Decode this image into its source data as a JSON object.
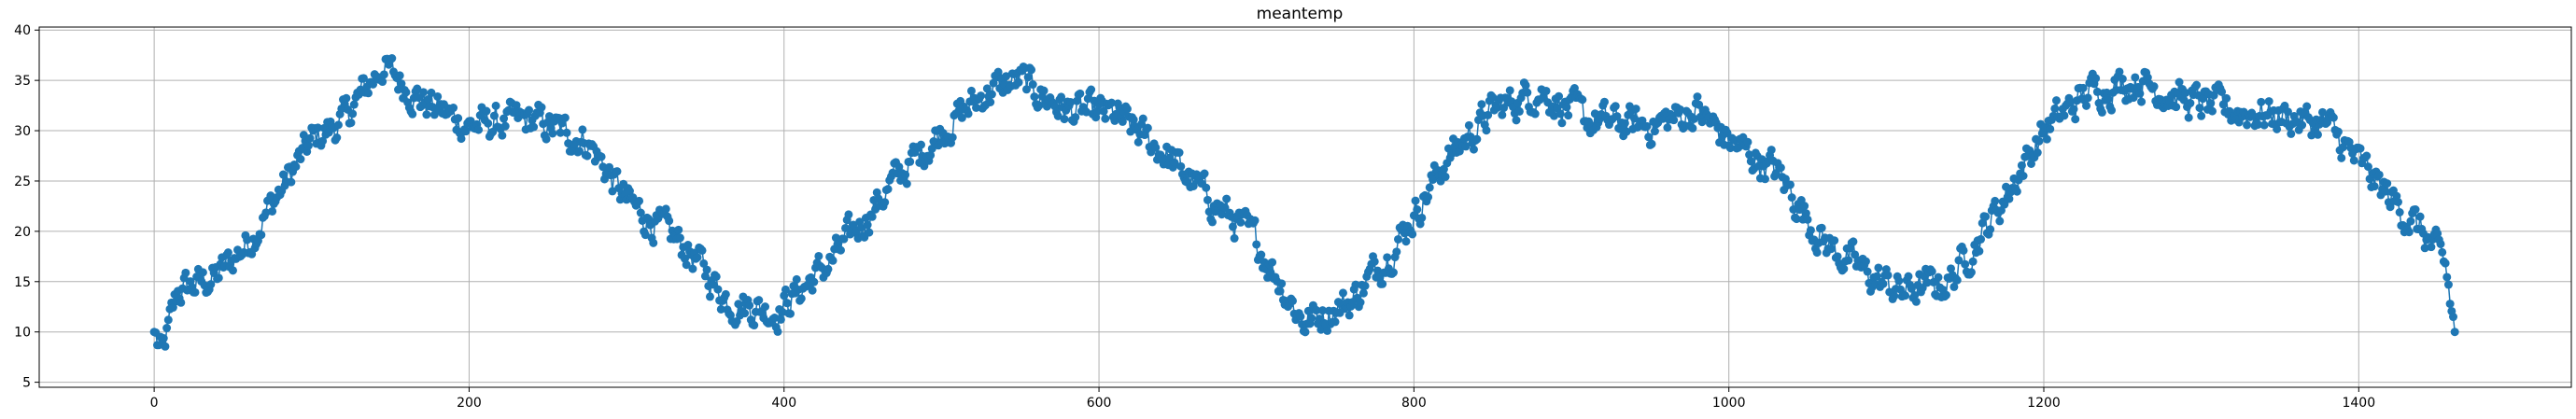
{
  "chart_data": {
    "type": "line",
    "title": "meantemp",
    "xlabel": "",
    "ylabel": "",
    "xlim": [
      -73,
      1535
    ],
    "ylim": [
      4.5,
      40.3
    ],
    "x_ticks": [
      0,
      200,
      400,
      600,
      800,
      1000,
      1200,
      1400
    ],
    "y_ticks": [
      5,
      10,
      15,
      20,
      25,
      30,
      35,
      40
    ],
    "grid": true,
    "legend": "none",
    "marker": "circle",
    "color": "#1f77b4",
    "anchors_x": [
      0,
      5,
      15,
      40,
      60,
      80,
      100,
      120,
      145,
      170,
      200,
      240,
      275,
      300,
      340,
      365,
      395,
      430,
      470,
      500,
      530,
      550,
      580,
      610,
      640,
      665,
      700,
      730,
      760,
      790,
      820,
      850,
      880,
      910,
      950,
      980,
      1000,
      1030,
      1060,
      1090,
      1110,
      1140,
      1170,
      1200,
      1230,
      1260,
      1290,
      1320,
      1350,
      1380,
      1410,
      1440,
      1455,
      1461
    ],
    "anchors_y": [
      10.0,
      7.5,
      14.0,
      15.5,
      19.0,
      24.0,
      29.0,
      31.0,
      36.5,
      33.0,
      30.5,
      31.0,
      29.0,
      23.0,
      18.0,
      13.0,
      12.0,
      17.0,
      25.0,
      30.0,
      34.0,
      35.0,
      32.0,
      31.5,
      28.0,
      24.0,
      19.0,
      11.0,
      13.0,
      19.0,
      27.0,
      32.0,
      34.0,
      31.0,
      30.5,
      32.0,
      29.0,
      26.0,
      19.0,
      15.5,
      14.0,
      15.0,
      22.0,
      30.0,
      34.0,
      35.0,
      33.0,
      32.0,
      31.5,
      30.5,
      25.0,
      20.0,
      16.5,
      10.0
    ],
    "noise_amplitude": 1.4,
    "n_points": 1462
  }
}
